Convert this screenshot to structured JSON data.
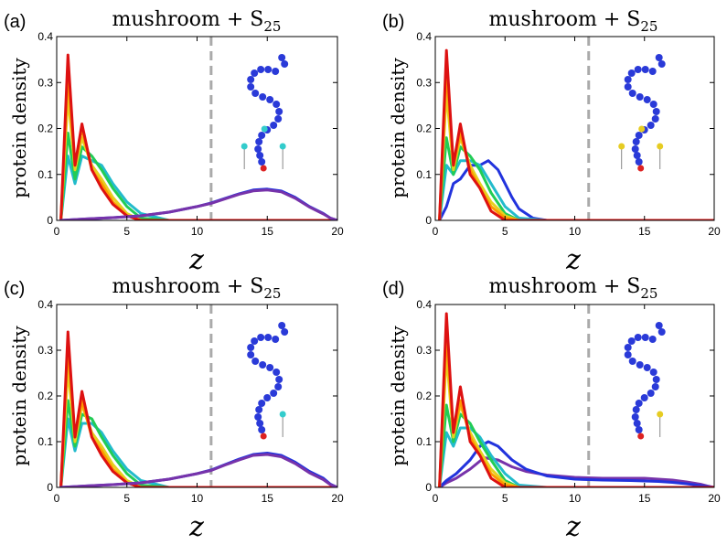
{
  "figure": {
    "x_axis_label": "z",
    "y_axis_label": "protein density"
  },
  "chart_data": [
    {
      "panel": "(a)",
      "type": "line",
      "title": "mushroom + S",
      "title_subscript": "25",
      "xlabel": "z",
      "ylabel": "protein density",
      "xlim": [
        0,
        20
      ],
      "ylim": [
        0,
        0.4
      ],
      "xticks": [
        0,
        5,
        10,
        15,
        20
      ],
      "yticks": [
        0,
        0.1,
        0.2,
        0.3,
        0.4
      ],
      "vline_x": 11,
      "inset": {
        "type": "polymer-chain-icon",
        "ligand_color": "#33cccc",
        "ligand_count": 3
      },
      "series": [
        {
          "name": "cyan",
          "color": "#22bbcc",
          "x": [
            0.3,
            0.8,
            1.3,
            1.8,
            2.5,
            3.2,
            4.0,
            5.0,
            6.0,
            8.0,
            10.0,
            12.0,
            14.0,
            15.0,
            16.0,
            17.0,
            18.0,
            19.0,
            19.5,
            20
          ],
          "y": [
            0.0,
            0.14,
            0.08,
            0.14,
            0.13,
            0.12,
            0.08,
            0.04,
            0.015,
            0.0,
            0.0,
            0.0,
            0.0,
            0.0,
            0.0,
            0.0,
            0.0,
            0.0,
            0.0,
            0.0
          ]
        },
        {
          "name": "green",
          "color": "#22cc55",
          "x": [
            0.3,
            0.8,
            1.3,
            1.8,
            2.5,
            3.2,
            4.0,
            5.0,
            6.0,
            8.0,
            10.0,
            20
          ],
          "y": [
            0.0,
            0.19,
            0.09,
            0.16,
            0.14,
            0.11,
            0.07,
            0.03,
            0.005,
            0.0,
            0.0,
            0.0
          ]
        },
        {
          "name": "yellow",
          "color": "#e6d020",
          "x": [
            0.3,
            0.8,
            1.3,
            1.8,
            2.5,
            3.2,
            4.0,
            5.0,
            6.0,
            8.0,
            20
          ],
          "y": [
            0.0,
            0.27,
            0.11,
            0.18,
            0.12,
            0.09,
            0.05,
            0.015,
            0.0,
            0.0,
            0.0
          ]
        },
        {
          "name": "orange",
          "color": "#ff9900",
          "x": [
            0.3,
            0.8,
            1.3,
            1.8,
            2.5,
            3.2,
            4.0,
            5.0,
            6.0,
            8.0,
            20
          ],
          "y": [
            0.0,
            0.32,
            0.12,
            0.2,
            0.11,
            0.08,
            0.04,
            0.01,
            0.0,
            0.0,
            0.0
          ]
        },
        {
          "name": "red",
          "color": "#dd1111",
          "x": [
            0.3,
            0.8,
            1.3,
            1.8,
            2.5,
            3.2,
            4.0,
            5.0,
            6.0,
            8.0,
            20
          ],
          "y": [
            0.0,
            0.36,
            0.12,
            0.21,
            0.11,
            0.07,
            0.035,
            0.01,
            0.0,
            0.0,
            0.0
          ]
        },
        {
          "name": "blue",
          "color": "#2233dd",
          "x": [
            0.3,
            2.0,
            4.0,
            6.0,
            8.0,
            10.0,
            11.0,
            12.0,
            13.0,
            14.0,
            15.0,
            16.0,
            17.0,
            18.0,
            19.0,
            19.5,
            20.0
          ],
          "y": [
            0.0,
            0.003,
            0.006,
            0.01,
            0.018,
            0.03,
            0.038,
            0.048,
            0.058,
            0.066,
            0.068,
            0.064,
            0.05,
            0.03,
            0.015,
            0.005,
            0.0
          ]
        },
        {
          "name": "purple",
          "color": "#7733aa",
          "x": [
            0.3,
            2.0,
            4.0,
            6.0,
            8.0,
            10.0,
            11.0,
            12.0,
            13.0,
            14.0,
            15.0,
            16.0,
            17.0,
            18.0,
            19.0,
            19.5,
            20.0
          ],
          "y": [
            0.0,
            0.003,
            0.006,
            0.01,
            0.018,
            0.03,
            0.037,
            0.047,
            0.057,
            0.064,
            0.066,
            0.062,
            0.048,
            0.029,
            0.014,
            0.005,
            0.0
          ]
        }
      ]
    },
    {
      "panel": "(b)",
      "type": "line",
      "title": "mushroom + S",
      "title_subscript": "25",
      "xlabel": "z",
      "ylabel": "protein density",
      "xlim": [
        0,
        20
      ],
      "ylim": [
        0,
        0.4
      ],
      "xticks": [
        0,
        5,
        10,
        15,
        20
      ],
      "yticks": [
        0,
        0.1,
        0.2,
        0.3,
        0.4
      ],
      "vline_x": 11,
      "inset": {
        "type": "polymer-chain-icon",
        "ligand_color": "#e6cc22",
        "ligand_count": 3
      },
      "series": [
        {
          "name": "blue",
          "color": "#2233dd",
          "x": [
            0.3,
            0.8,
            1.3,
            1.8,
            2.5,
            3.2,
            3.8,
            4.5,
            5.0,
            5.5,
            6.0,
            7.0,
            8.0,
            10.0,
            20
          ],
          "y": [
            0.0,
            0.03,
            0.08,
            0.09,
            0.12,
            0.12,
            0.13,
            0.11,
            0.08,
            0.05,
            0.025,
            0.005,
            0.0,
            0.0,
            0.0
          ]
        },
        {
          "name": "cyan",
          "color": "#22bbcc",
          "x": [
            0.3,
            0.8,
            1.3,
            1.8,
            2.5,
            3.2,
            4.0,
            5.0,
            6.0,
            8.0,
            20
          ],
          "y": [
            0.0,
            0.12,
            0.1,
            0.13,
            0.13,
            0.12,
            0.08,
            0.03,
            0.005,
            0.0,
            0.0
          ]
        },
        {
          "name": "green",
          "color": "#22cc55",
          "x": [
            0.3,
            0.8,
            1.3,
            1.8,
            2.5,
            3.2,
            4.0,
            5.0,
            6.0,
            8.0,
            20
          ],
          "y": [
            0.0,
            0.18,
            0.1,
            0.16,
            0.14,
            0.11,
            0.06,
            0.015,
            0.0,
            0.0,
            0.0
          ]
        },
        {
          "name": "yellow",
          "color": "#e6d020",
          "x": [
            0.3,
            0.8,
            1.3,
            1.8,
            2.5,
            3.2,
            4.0,
            5.0,
            6.0,
            8.0,
            20
          ],
          "y": [
            0.0,
            0.28,
            0.11,
            0.18,
            0.12,
            0.08,
            0.04,
            0.01,
            0.0,
            0.0,
            0.0
          ]
        },
        {
          "name": "orange",
          "color": "#ff9900",
          "x": [
            0.3,
            0.8,
            1.3,
            1.8,
            2.5,
            3.2,
            4.0,
            5.0,
            6.0,
            8.0,
            20
          ],
          "y": [
            0.0,
            0.33,
            0.12,
            0.19,
            0.11,
            0.07,
            0.03,
            0.005,
            0.0,
            0.0,
            0.0
          ]
        },
        {
          "name": "red",
          "color": "#dd1111",
          "x": [
            0.3,
            0.8,
            1.3,
            1.8,
            2.5,
            3.2,
            4.0,
            5.0,
            6.0,
            8.0,
            20
          ],
          "y": [
            0.0,
            0.37,
            0.12,
            0.21,
            0.1,
            0.07,
            0.02,
            0.0,
            0.0,
            0.0,
            0.0
          ]
        }
      ]
    },
    {
      "panel": "(c)",
      "type": "line",
      "title": "mushroom + S",
      "title_subscript": "25",
      "xlabel": "z",
      "ylabel": "protein density",
      "xlim": [
        0,
        20
      ],
      "ylim": [
        0,
        0.4
      ],
      "xticks": [
        0,
        5,
        10,
        15,
        20
      ],
      "yticks": [
        0,
        0.1,
        0.2,
        0.3,
        0.4
      ],
      "vline_x": 11,
      "inset": {
        "type": "polymer-chain-icon",
        "ligand_color": "#33cccc",
        "ligand_count": 1
      },
      "series": [
        {
          "name": "cyan",
          "color": "#22bbcc",
          "x": [
            0.3,
            0.8,
            1.3,
            1.8,
            2.5,
            3.2,
            4.0,
            5.0,
            6.0,
            8.0,
            10.0,
            12.0,
            14.0,
            16.0,
            17.0,
            18.0,
            19.0,
            19.5,
            20
          ],
          "y": [
            0.0,
            0.15,
            0.08,
            0.14,
            0.14,
            0.12,
            0.08,
            0.04,
            0.015,
            0.0,
            0.0,
            0.0,
            0.0,
            0.0,
            0.0,
            0.0,
            0.0,
            0.0,
            0.0
          ]
        },
        {
          "name": "green",
          "color": "#22cc55",
          "x": [
            0.3,
            0.8,
            1.3,
            1.8,
            2.5,
            3.2,
            4.0,
            5.0,
            6.0,
            8.0,
            20
          ],
          "y": [
            0.0,
            0.19,
            0.09,
            0.16,
            0.15,
            0.11,
            0.07,
            0.03,
            0.005,
            0.0,
            0.0
          ]
        },
        {
          "name": "yellow",
          "color": "#e6d020",
          "x": [
            0.3,
            0.8,
            1.3,
            1.8,
            2.5,
            3.2,
            4.0,
            5.0,
            6.0,
            8.0,
            20
          ],
          "y": [
            0.0,
            0.26,
            0.1,
            0.18,
            0.12,
            0.09,
            0.05,
            0.015,
            0.0,
            0.0,
            0.0
          ]
        },
        {
          "name": "orange",
          "color": "#ff9900",
          "x": [
            0.3,
            0.8,
            1.3,
            1.8,
            2.5,
            3.2,
            4.0,
            5.0,
            6.0,
            8.0,
            20
          ],
          "y": [
            0.0,
            0.31,
            0.11,
            0.19,
            0.11,
            0.08,
            0.04,
            0.01,
            0.0,
            0.0,
            0.0
          ]
        },
        {
          "name": "red",
          "color": "#dd1111",
          "x": [
            0.3,
            0.8,
            1.3,
            1.8,
            2.5,
            3.2,
            4.0,
            5.0,
            6.0,
            8.0,
            20
          ],
          "y": [
            0.0,
            0.34,
            0.11,
            0.21,
            0.11,
            0.07,
            0.035,
            0.01,
            0.0,
            0.0,
            0.0
          ]
        },
        {
          "name": "blue",
          "color": "#2233dd",
          "x": [
            0.3,
            2.0,
            4.0,
            6.0,
            8.0,
            10.0,
            11.0,
            12.0,
            13.0,
            14.0,
            15.0,
            16.0,
            17.0,
            18.0,
            19.0,
            19.5,
            20.0
          ],
          "y": [
            0.0,
            0.003,
            0.006,
            0.01,
            0.018,
            0.03,
            0.038,
            0.05,
            0.062,
            0.072,
            0.075,
            0.07,
            0.055,
            0.035,
            0.02,
            0.007,
            0.0
          ]
        },
        {
          "name": "purple",
          "color": "#7733aa",
          "x": [
            0.3,
            2.0,
            4.0,
            6.0,
            8.0,
            10.0,
            11.0,
            12.0,
            13.0,
            14.0,
            15.0,
            16.0,
            17.0,
            18.0,
            19.0,
            19.5,
            20.0
          ],
          "y": [
            0.0,
            0.003,
            0.006,
            0.01,
            0.018,
            0.03,
            0.037,
            0.049,
            0.06,
            0.07,
            0.072,
            0.067,
            0.052,
            0.032,
            0.017,
            0.006,
            0.0
          ]
        }
      ]
    },
    {
      "panel": "(d)",
      "type": "line",
      "title": "mushroom + S",
      "title_subscript": "25",
      "xlabel": "z",
      "ylabel": "protein density",
      "xlim": [
        0,
        20
      ],
      "ylim": [
        0,
        0.4
      ],
      "xticks": [
        0,
        5,
        10,
        15,
        20
      ],
      "yticks": [
        0,
        0.1,
        0.2,
        0.3,
        0.4
      ],
      "vline_x": 11,
      "inset": {
        "type": "polymer-chain-icon",
        "ligand_color": "#e6cc22",
        "ligand_count": 1
      },
      "series": [
        {
          "name": "purple",
          "color": "#7733aa",
          "x": [
            0.3,
            0.8,
            1.5,
            2.5,
            3.5,
            4.5,
            5.5,
            6.5,
            8.0,
            10.0,
            12.0,
            14.0,
            15.0,
            16.0,
            17.0,
            18.0,
            19.0,
            19.5,
            20.0
          ],
          "y": [
            0.0,
            0.01,
            0.02,
            0.04,
            0.065,
            0.06,
            0.045,
            0.035,
            0.027,
            0.022,
            0.02,
            0.02,
            0.02,
            0.018,
            0.016,
            0.012,
            0.007,
            0.003,
            0.0
          ]
        },
        {
          "name": "blue",
          "color": "#2233dd",
          "x": [
            0.3,
            0.8,
            1.5,
            2.5,
            3.2,
            3.8,
            4.5,
            5.5,
            6.5,
            8.0,
            10.0,
            12.0,
            14.0,
            15.0,
            16.0,
            17.0,
            18.0,
            19.0,
            19.5,
            20.0
          ],
          "y": [
            0.0,
            0.015,
            0.03,
            0.06,
            0.09,
            0.1,
            0.09,
            0.06,
            0.04,
            0.025,
            0.018,
            0.016,
            0.015,
            0.014,
            0.013,
            0.011,
            0.008,
            0.004,
            0.002,
            0.0
          ]
        },
        {
          "name": "cyan",
          "color": "#22bbcc",
          "x": [
            0.3,
            0.8,
            1.3,
            1.8,
            2.5,
            3.2,
            4.0,
            5.0,
            6.0,
            8.0,
            20
          ],
          "y": [
            0.0,
            0.12,
            0.09,
            0.13,
            0.13,
            0.11,
            0.07,
            0.03,
            0.005,
            0.0,
            0.0
          ]
        },
        {
          "name": "green",
          "color": "#22cc55",
          "x": [
            0.3,
            0.8,
            1.3,
            1.8,
            2.5,
            3.2,
            4.0,
            5.0,
            6.0,
            8.0,
            20
          ],
          "y": [
            0.0,
            0.18,
            0.1,
            0.16,
            0.14,
            0.1,
            0.06,
            0.015,
            0.0,
            0.0,
            0.0
          ]
        },
        {
          "name": "yellow",
          "color": "#e6d020",
          "x": [
            0.3,
            0.8,
            1.3,
            1.8,
            2.5,
            3.2,
            4.0,
            5.0,
            6.0,
            8.0,
            20
          ],
          "y": [
            0.0,
            0.29,
            0.11,
            0.18,
            0.12,
            0.08,
            0.04,
            0.01,
            0.0,
            0.0,
            0.0
          ]
        },
        {
          "name": "orange",
          "color": "#ff9900",
          "x": [
            0.3,
            0.8,
            1.3,
            1.8,
            2.5,
            3.2,
            4.0,
            5.0,
            6.0,
            8.0,
            20
          ],
          "y": [
            0.0,
            0.34,
            0.12,
            0.19,
            0.11,
            0.07,
            0.03,
            0.005,
            0.0,
            0.0,
            0.0
          ]
        },
        {
          "name": "red",
          "color": "#dd1111",
          "x": [
            0.3,
            0.8,
            1.3,
            1.8,
            2.5,
            3.2,
            4.0,
            5.0,
            6.0,
            8.0,
            20
          ],
          "y": [
            0.0,
            0.38,
            0.12,
            0.22,
            0.1,
            0.07,
            0.02,
            0.0,
            0.0,
            0.0,
            0.0
          ]
        }
      ]
    }
  ]
}
